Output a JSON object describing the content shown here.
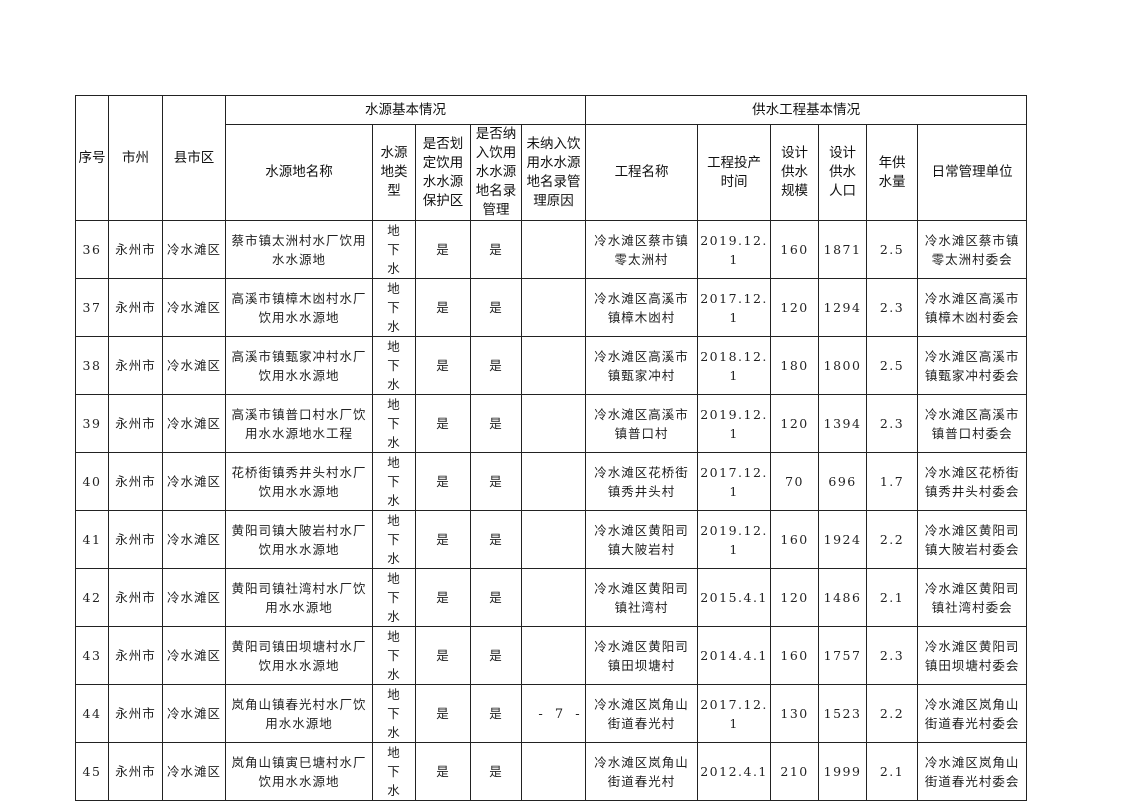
{
  "headers": {
    "seq": "序号",
    "city": "市州",
    "county": "县市区",
    "group_source": "水源基本情况",
    "group_project": "供水工程基本情况",
    "source_name": "水源地名称",
    "source_type": "水源地类型",
    "protected": "是否划定饮用水水源保护区",
    "listed": "是否纳入饮用水水源地名录管理",
    "not_listed_reason": "未纳入饮用水水源地名录管理原因",
    "project_name": "工程名称",
    "start_time": "工程投产时间",
    "design_scale": "设计供水规模",
    "design_pop": "设计供水人口",
    "annual_supply": "年供水量",
    "manager": "日常管理单位"
  },
  "rows": [
    [
      "36",
      "永州市",
      "冷水滩区",
      "蔡市镇太洲村水厂饮用水水源地",
      "地下水",
      "是",
      "是",
      "",
      "冷水滩区蔡市镇零太洲村",
      "2019.12.1",
      "160",
      "1871",
      "2.5",
      "冷水滩区蔡市镇零太洲村委会"
    ],
    [
      "37",
      "永州市",
      "冷水滩区",
      "高溪市镇樟木凼村水厂饮用水水源地",
      "地下水",
      "是",
      "是",
      "",
      "冷水滩区高溪市镇樟木凼村",
      "2017.12.1",
      "120",
      "1294",
      "2.3",
      "冷水滩区高溪市镇樟木凼村委会"
    ],
    [
      "38",
      "永州市",
      "冷水滩区",
      "高溪市镇甄家冲村水厂饮用水水源地",
      "地下水",
      "是",
      "是",
      "",
      "冷水滩区高溪市镇甄家冲村",
      "2018.12.1",
      "180",
      "1800",
      "2.5",
      "冷水滩区高溪市镇甄家冲村委会"
    ],
    [
      "39",
      "永州市",
      "冷水滩区",
      "高溪市镇普口村水厂饮用水水源地水工程",
      "地下水",
      "是",
      "是",
      "",
      "冷水滩区高溪市镇普口村",
      "2019.12.1",
      "120",
      "1394",
      "2.3",
      "冷水滩区高溪市镇普口村委会"
    ],
    [
      "40",
      "永州市",
      "冷水滩区",
      "花桥街镇秀井头村水厂饮用水水源地",
      "地下水",
      "是",
      "是",
      "",
      "冷水滩区花桥街镇秀井头村",
      "2017.12.1",
      "70",
      "696",
      "1.7",
      "冷水滩区花桥街镇秀井头村委会"
    ],
    [
      "41",
      "永州市",
      "冷水滩区",
      "黄阳司镇大陂岩村水厂饮用水水源地",
      "地下水",
      "是",
      "是",
      "",
      "冷水滩区黄阳司镇大陂岩村",
      "2019.12.1",
      "160",
      "1924",
      "2.2",
      "冷水滩区黄阳司镇大陂岩村委会"
    ],
    [
      "42",
      "永州市",
      "冷水滩区",
      "黄阳司镇社湾村水厂饮用水水源地",
      "地下水",
      "是",
      "是",
      "",
      "冷水滩区黄阳司镇社湾村",
      "2015.4.1",
      "120",
      "1486",
      "2.1",
      "冷水滩区黄阳司镇社湾村委会"
    ],
    [
      "43",
      "永州市",
      "冷水滩区",
      "黄阳司镇田坝塘村水厂饮用水水源地",
      "地下水",
      "是",
      "是",
      "",
      "冷水滩区黄阳司镇田坝塘村",
      "2014.4.1",
      "160",
      "1757",
      "2.3",
      "冷水滩区黄阳司镇田坝塘村委会"
    ],
    [
      "44",
      "永州市",
      "冷水滩区",
      "岚角山镇春光村水厂饮用水水源地",
      "地下水",
      "是",
      "是",
      "",
      "冷水滩区岚角山街道春光村",
      "2017.12.1",
      "130",
      "1523",
      "2.2",
      "冷水滩区岚角山街道春光村委会"
    ],
    [
      "45",
      "永州市",
      "冷水滩区",
      "岚角山镇寅巳塘村水厂饮用水水源地",
      "地下水",
      "是",
      "是",
      "",
      "冷水滩区岚角山街道春光村",
      "2012.4.1",
      "210",
      "1999",
      "2.1",
      "冷水滩区岚角山街道春光村委会"
    ]
  ],
  "page_number": "- 7 -"
}
